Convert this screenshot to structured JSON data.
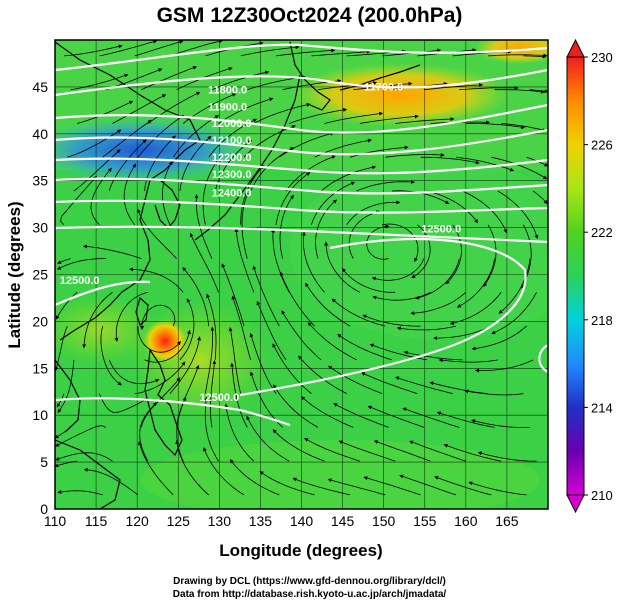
{
  "title": "GSM 12Z30Oct2024 (200.0hPa)",
  "axes": {
    "x_label": "Longitude (degrees)",
    "y_label": "Latitude  (degrees)",
    "x_ticks": [
      "110",
      "115",
      "120",
      "125",
      "130",
      "135",
      "140",
      "145",
      "150",
      "155",
      "160",
      "165"
    ],
    "y_ticks": [
      "0",
      "5",
      "10",
      "15",
      "20",
      "25",
      "30",
      "35",
      "40",
      "45"
    ],
    "x_range": [
      110,
      170
    ],
    "y_range": [
      0,
      50
    ]
  },
  "colorbar": {
    "tick_labels": [
      "230",
      "226",
      "222",
      "218",
      "214",
      "210"
    ],
    "min": 210,
    "max": 230,
    "colors": [
      "#d400d4",
      "#6a00b0",
      "#2030c8",
      "#1e8cff",
      "#00d2dc",
      "#2ad25a",
      "#50d21e",
      "#a8e614",
      "#f0d200",
      "#ff8a00",
      "#f01e1e"
    ]
  },
  "contour_labels": [
    {
      "text": "11700.0",
      "lon": 150.0,
      "lat": 44.6
    },
    {
      "text": "11800.0",
      "lon": 131.0,
      "lat": 44.3
    },
    {
      "text": "11900.0",
      "lon": 131.0,
      "lat": 42.5
    },
    {
      "text": "12000.0",
      "lon": 131.5,
      "lat": 40.7
    },
    {
      "text": "12100.0",
      "lon": 131.5,
      "lat": 38.9
    },
    {
      "text": "12200.0",
      "lon": 131.5,
      "lat": 37.1
    },
    {
      "text": "12300.0",
      "lon": 131.5,
      "lat": 35.3
    },
    {
      "text": "12400.0",
      "lon": 131.5,
      "lat": 33.3
    },
    {
      "text": "12500.0",
      "lon": 157.0,
      "lat": 29.5
    },
    {
      "text": "12500.0",
      "lon": 113.0,
      "lat": 24.0
    },
    {
      "text": "12500.0",
      "lon": 130.0,
      "lat": 11.5
    }
  ],
  "credits": [
    "Drawing by DCL (https://www.gfd-dennou.org/library/dcl/)",
    "Data from http://database.rish.kyoto-u.ac.jp/arch/jmadata/"
  ],
  "colors": {
    "contour": "#ffffff",
    "coast": "#000000",
    "streamline": "#000000",
    "gridline": "#000000"
  }
}
